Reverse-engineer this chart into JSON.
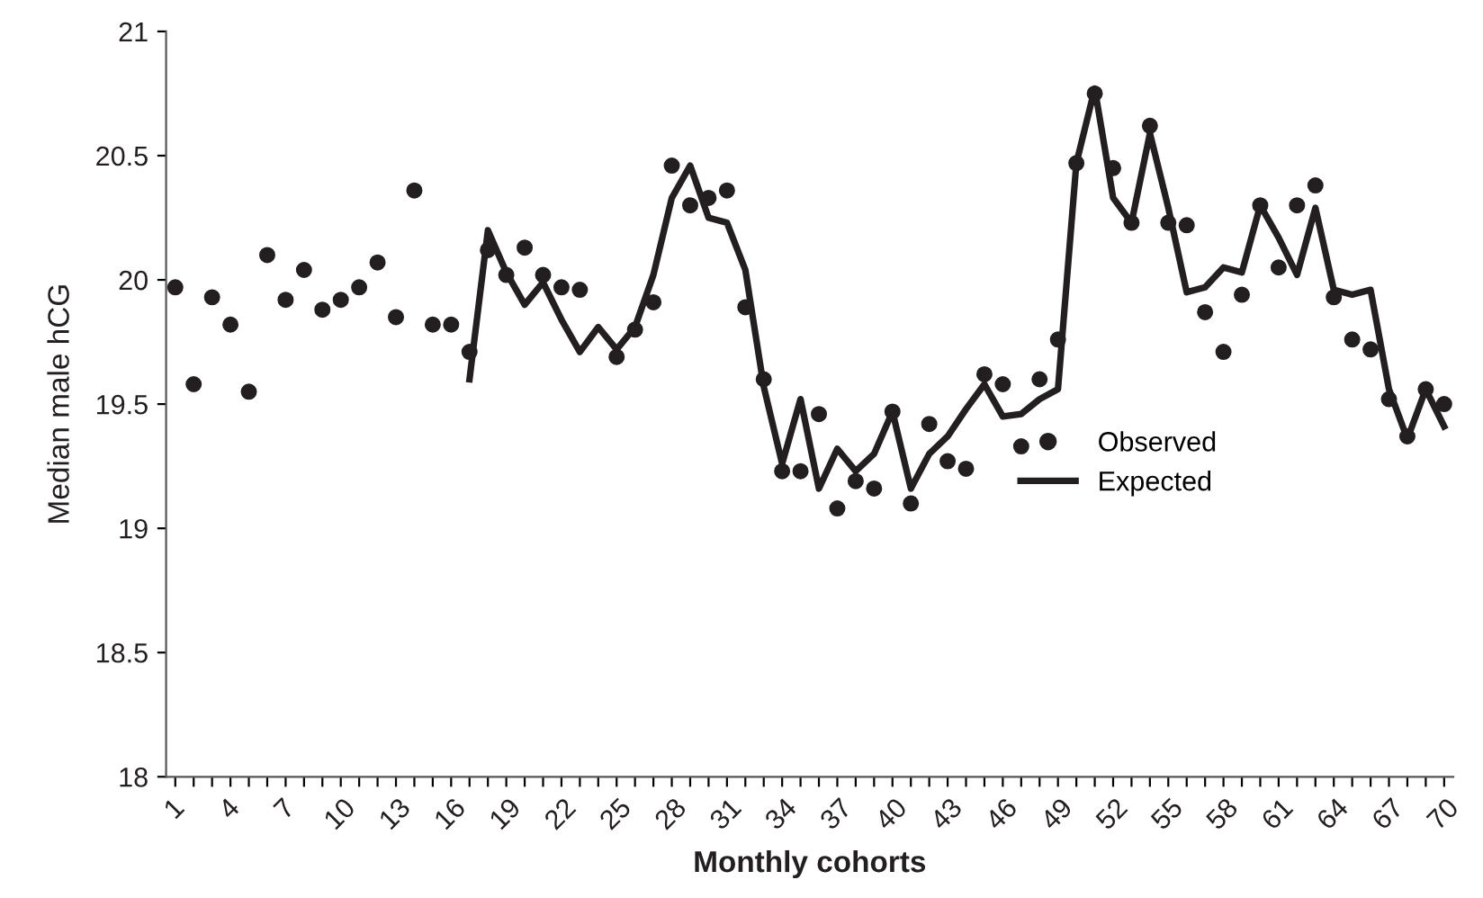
{
  "chart_data": {
    "type": "line",
    "xlabel": "Monthly cohorts",
    "ylabel": "Median male hCG",
    "categories": [
      "1",
      null,
      null,
      "4",
      null,
      null,
      "7",
      null,
      null,
      "10",
      null,
      null,
      "13",
      null,
      null,
      "16",
      null,
      null,
      "19",
      null,
      null,
      "22",
      null,
      null,
      "25",
      null,
      null,
      "28",
      null,
      null,
      "31",
      null,
      null,
      "34",
      null,
      null,
      "37",
      null,
      null,
      "40",
      null,
      null,
      "43",
      null,
      null,
      "46",
      null,
      null,
      "49",
      null,
      null,
      "52",
      null,
      null,
      "55",
      null,
      null,
      "58",
      null,
      null,
      "61",
      null,
      null,
      "64",
      null,
      null,
      "67",
      null,
      null,
      "70"
    ],
    "series": [
      {
        "name": "Observed",
        "type": "scatter",
        "marker": "circle",
        "color": "#231f20",
        "values": [
          19.97,
          19.58,
          19.93,
          19.82,
          19.55,
          20.1,
          19.92,
          20.04,
          19.88,
          19.92,
          19.97,
          20.07,
          19.85,
          20.36,
          19.82,
          19.82,
          19.71,
          20.12,
          20.02,
          20.13,
          20.02,
          19.97,
          19.96,
          null,
          19.69,
          19.8,
          19.91,
          20.46,
          20.3,
          20.33,
          20.36,
          19.89,
          19.6,
          19.23,
          19.23,
          19.46,
          19.08,
          19.19,
          19.16,
          19.47,
          19.1,
          19.42,
          19.27,
          19.24,
          19.62,
          19.58,
          19.33,
          19.6,
          19.76,
          20.47,
          20.75,
          20.45,
          20.23,
          20.62,
          20.23,
          20.22,
          19.87,
          19.71,
          19.94,
          20.3,
          20.05,
          20.3,
          20.38,
          19.93,
          19.76,
          19.72,
          19.52,
          19.37,
          19.56,
          19.5
        ]
      },
      {
        "name": "Expected",
        "marker": "none",
        "line_style": "solid",
        "color": "#231f20",
        "values": [
          null,
          null,
          null,
          null,
          null,
          null,
          null,
          null,
          null,
          null,
          null,
          null,
          null,
          null,
          null,
          null,
          19.6,
          20.2,
          20.03,
          19.9,
          19.99,
          19.84,
          19.71,
          19.81,
          19.72,
          19.81,
          20.02,
          20.33,
          20.46,
          20.25,
          20.23,
          20.04,
          19.57,
          19.26,
          19.52,
          19.16,
          19.32,
          19.23,
          19.3,
          19.47,
          19.16,
          19.3,
          19.37,
          19.48,
          19.58,
          19.45,
          19.46,
          19.52,
          19.56,
          20.47,
          20.77,
          20.33,
          20.23,
          20.59,
          20.29,
          19.95,
          19.97,
          20.05,
          20.03,
          20.3,
          20.17,
          20.02,
          20.29,
          19.96,
          19.94,
          19.96,
          19.56,
          19.36,
          19.56,
          19.41
        ]
      }
    ],
    "ylim": [
      18,
      21
    ],
    "yticks": [
      18,
      18.5,
      19,
      19.5,
      20,
      20.5,
      21
    ],
    "grid": false,
    "legend": "right"
  }
}
